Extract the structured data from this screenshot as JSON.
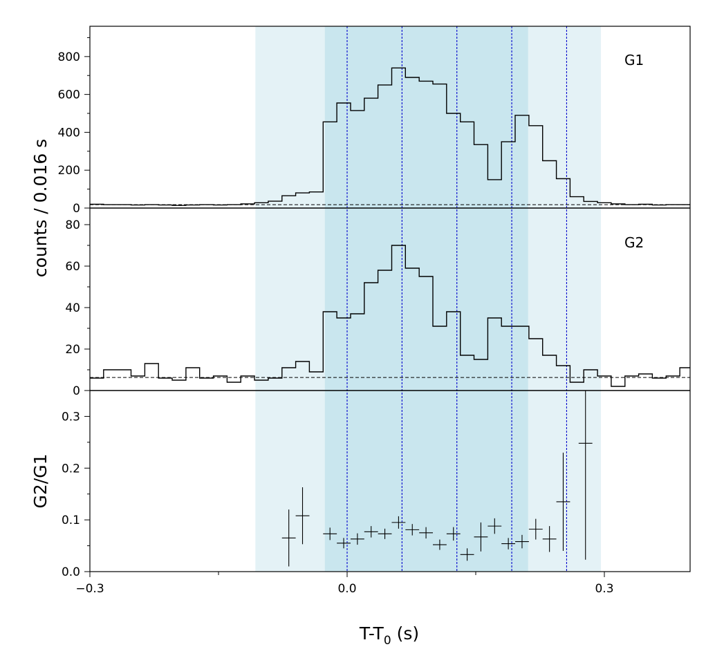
{
  "chart_data": {
    "type": "step-histogram",
    "xlabel_main": "T-T",
    "xlabel_sub": "0",
    "xlabel_unit": " (s)",
    "ylabel_top": "counts /  0.016 s",
    "xlim": [
      -0.3,
      0.4
    ],
    "x_ticks": [
      -0.3,
      0.0,
      0.3
    ],
    "x_tick_labels": [
      "−0.3",
      "0.0",
      "0.3"
    ],
    "shaded_regions": [
      {
        "x0": -0.107,
        "x1": 0.296,
        "color": "#e4f2f6"
      },
      {
        "x0": -0.026,
        "x1": 0.211,
        "color": "#c9e6ee"
      }
    ],
    "vertical_lines": [
      0.0,
      0.064,
      0.128,
      0.192,
      0.256
    ],
    "vline_color": "#0000cc",
    "bin_edges": [
      -0.3,
      -0.284,
      -0.268,
      -0.252,
      -0.236,
      -0.22,
      -0.204,
      -0.188,
      -0.172,
      -0.156,
      -0.14,
      -0.124,
      -0.108,
      -0.092,
      -0.076,
      -0.06,
      -0.044,
      -0.028,
      -0.012,
      0.004,
      0.02,
      0.036,
      0.052,
      0.068,
      0.084,
      0.1,
      0.116,
      0.132,
      0.148,
      0.164,
      0.18,
      0.196,
      0.212,
      0.228,
      0.244,
      0.26,
      0.276,
      0.292,
      0.308,
      0.324,
      0.34,
      0.356,
      0.372,
      0.388,
      0.4
    ],
    "panels": [
      {
        "label": "G1",
        "ylim": [
          0,
          960
        ],
        "y_ticks": [
          0,
          200,
          400,
          600,
          800
        ],
        "y_tick_labels": [
          "0",
          "200",
          "400",
          "600",
          "800"
        ],
        "baseline": 18,
        "counts": [
          20,
          18,
          18,
          16,
          18,
          16,
          14,
          16,
          18,
          16,
          18,
          22,
          28,
          36,
          65,
          80,
          85,
          455,
          555,
          515,
          580,
          650,
          740,
          690,
          670,
          655,
          500,
          455,
          335,
          150,
          350,
          490,
          435,
          250,
          155,
          60,
          35,
          28,
          22,
          18,
          20,
          16,
          18,
          18
        ]
      },
      {
        "label": "G2",
        "ylim": [
          0,
          88
        ],
        "y_ticks": [
          0,
          20,
          40,
          60,
          80
        ],
        "y_tick_labels": [
          "0",
          "20",
          "40",
          "60",
          "80"
        ],
        "baseline": 6.3,
        "counts": [
          6,
          10,
          10,
          7,
          13,
          6,
          5,
          11,
          6,
          7,
          4,
          7,
          5,
          6,
          11,
          14,
          9,
          38,
          35,
          37,
          52,
          58,
          70,
          59,
          55,
          31,
          38,
          17,
          15,
          35,
          31,
          31,
          25,
          17,
          12,
          4,
          10,
          7,
          2,
          7,
          8,
          6,
          7,
          11
        ]
      }
    ],
    "ratio_panel": {
      "ylabel": "G2/G1",
      "ylim": [
        0,
        0.35
      ],
      "y_ticks": [
        0.0,
        0.1,
        0.2,
        0.3
      ],
      "y_tick_labels": [
        "0.0",
        "0.1",
        "0.2",
        "0.3"
      ],
      "points": [
        {
          "x": -0.068,
          "y": 0.065,
          "yerr": 0.055
        },
        {
          "x": -0.052,
          "y": 0.108,
          "yerr": 0.055
        },
        {
          "x": -0.02,
          "y": 0.073,
          "yerr": 0.012
        },
        {
          "x": -0.004,
          "y": 0.055,
          "yerr": 0.01
        },
        {
          "x": 0.012,
          "y": 0.063,
          "yerr": 0.011
        },
        {
          "x": 0.028,
          "y": 0.077,
          "yerr": 0.011
        },
        {
          "x": 0.044,
          "y": 0.073,
          "yerr": 0.01
        },
        {
          "x": 0.06,
          "y": 0.095,
          "yerr": 0.012
        },
        {
          "x": 0.076,
          "y": 0.081,
          "yerr": 0.011
        },
        {
          "x": 0.092,
          "y": 0.075,
          "yerr": 0.011
        },
        {
          "x": 0.108,
          "y": 0.052,
          "yerr": 0.01
        },
        {
          "x": 0.124,
          "y": 0.073,
          "yerr": 0.013
        },
        {
          "x": 0.14,
          "y": 0.033,
          "yerr": 0.012
        },
        {
          "x": 0.156,
          "y": 0.067,
          "yerr": 0.028
        },
        {
          "x": 0.172,
          "y": 0.088,
          "yerr": 0.015
        },
        {
          "x": 0.188,
          "y": 0.054,
          "yerr": 0.011
        },
        {
          "x": 0.204,
          "y": 0.058,
          "yerr": 0.013
        },
        {
          "x": 0.22,
          "y": 0.082,
          "yerr": 0.02
        },
        {
          "x": 0.236,
          "y": 0.063,
          "yerr": 0.025
        },
        {
          "x": 0.252,
          "y": 0.135,
          "yerr": 0.095
        },
        {
          "x": 0.278,
          "y": 0.248,
          "yerr": 0.225
        }
      ]
    }
  }
}
